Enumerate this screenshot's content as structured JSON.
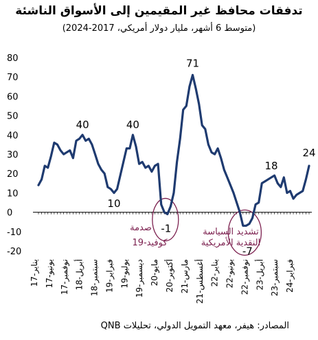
{
  "header": {
    "title": "تدفقات محافظ غير المقيمين إلى الأسواق الناشئة",
    "subtitle": "(متوسط 6 أشهر، مليار دولار أمريكي، 2017-2024)"
  },
  "footer": {
    "source": "المصادر: هيفر، معهد التمويل الدولي، تحليلات QNB"
  },
  "colors": {
    "line": "#1f3b70",
    "annotation": "#7b1f4e",
    "axis": "#000000"
  },
  "chart_data": {
    "type": "line",
    "title": "تدفقات محافظ غير المقيمين إلى الأسواق الناشئة",
    "subtitle": "(متوسط 6 أشهر، مليار دولار أمريكي، 2017-2024)",
    "ylim": [
      -20,
      80
    ],
    "yticks": [
      -20,
      -10,
      0,
      10,
      20,
      30,
      40,
      50,
      60,
      70,
      80
    ],
    "grid": false,
    "x_tick_labels": [
      "يناير-17",
      "يونيو-17",
      "نوفمبر-17",
      "أبريل-18",
      "سبتمبر-18",
      "فبراير-19",
      "يوليو-19",
      "ديسمبر-19",
      "مايو-20",
      "أكتوبر-20",
      "مارس-21",
      "أغسطس-21",
      "يناير-22",
      "يونيو-22",
      "نوفمبر-22",
      "أبريل-23",
      "سبتمبر-23",
      "فبراير-24"
    ],
    "series": [
      {
        "values": [
          14,
          17,
          24,
          23,
          29,
          36,
          35,
          32,
          30,
          31,
          32,
          28,
          37,
          38,
          40,
          37,
          38,
          35,
          30,
          25,
          22,
          20,
          13,
          12,
          10,
          12,
          19,
          26,
          33,
          33,
          40,
          34,
          25,
          26,
          23,
          24,
          21,
          24,
          25,
          4,
          0,
          -1,
          3,
          10,
          26,
          38,
          53,
          55,
          65,
          71,
          64,
          56,
          45,
          43,
          35,
          31,
          30,
          33,
          28,
          22,
          18,
          14,
          10,
          5,
          0,
          -7,
          -7,
          -6,
          -3,
          4,
          5,
          15,
          16,
          17,
          18,
          19,
          15,
          13,
          18,
          10,
          11,
          7,
          9,
          10,
          11,
          17,
          24
        ]
      }
    ],
    "annotations": [
      {
        "label": "40",
        "x_index": 14,
        "value": 40
      },
      {
        "label": "10",
        "x_index": 24,
        "value": 10
      },
      {
        "label": "40",
        "x_index": 30,
        "value": 40
      },
      {
        "label": "71",
        "x_index": 49,
        "value": 71
      },
      {
        "label": "-1",
        "x_index": 41,
        "value": -1
      },
      {
        "label": "-7",
        "x_index": 66,
        "value": -7
      },
      {
        "label": "18",
        "x_index": 74,
        "value": 18
      },
      {
        "label": "24",
        "x_index": 86,
        "value": 24
      }
    ],
    "event_labels": [
      {
        "line1": "صدمة",
        "line2": "كوفيد-19"
      },
      {
        "line1": "تشديد السياسة",
        "line2": "النقدية الأمريكية"
      }
    ]
  }
}
